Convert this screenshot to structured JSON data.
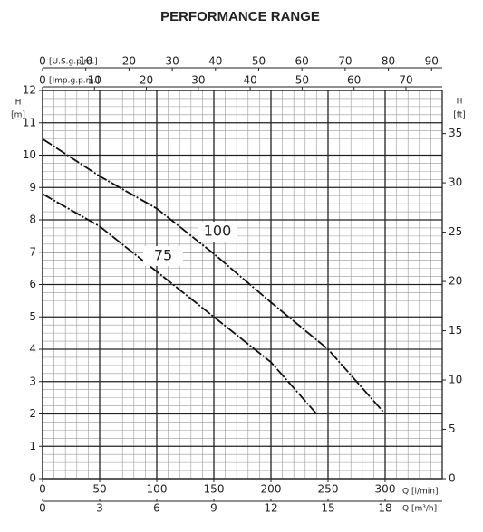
{
  "chart_data": {
    "type": "line",
    "title": "PERFORMANCE RANGE",
    "xlim": [
      0,
      350
    ],
    "xticks": [
      0,
      50,
      100,
      150,
      200,
      250,
      300
    ],
    "xlabel": "Q [l/min]",
    "extra_x_axes": [
      {
        "position": "bottom",
        "label": "Q [m³/h]",
        "lim": [
          0,
          21
        ],
        "ticks": [
          0,
          3,
          6,
          9,
          12,
          15,
          18
        ]
      },
      {
        "position": "top",
        "label": "[U.S.g.p.m.]",
        "lim": [
          0,
          92.46
        ],
        "ticks": [
          0,
          10,
          20,
          30,
          40,
          50,
          60,
          70,
          80,
          90
        ]
      },
      {
        "position": "top",
        "label": "[Imp.g.p.m.]",
        "lim": [
          0,
          76.99
        ],
        "ticks": [
          0,
          10,
          20,
          30,
          40,
          50,
          60,
          70
        ]
      }
    ],
    "ylabel": "H",
    "yunit": "[m]",
    "ylim": [
      0,
      12
    ],
    "yticks": [
      0,
      1,
      2,
      3,
      4,
      5,
      6,
      7,
      8,
      9,
      10,
      11,
      12
    ],
    "y2label": "H",
    "y2unit": "[ft]",
    "y2lim": [
      0,
      39.37
    ],
    "y2ticks": [
      0,
      5,
      10,
      15,
      20,
      25,
      30,
      35
    ],
    "grid": true,
    "series": [
      {
        "name": "100",
        "color": "#111111",
        "x": [
          0,
          50,
          100,
          150,
          200,
          250,
          300
        ],
        "values": [
          10.5,
          9.35,
          8.35,
          6.95,
          5.45,
          4.0,
          2.0
        ]
      },
      {
        "name": "75",
        "color": "#111111",
        "x": [
          0,
          50,
          100,
          150,
          200,
          240
        ],
        "values": [
          8.8,
          7.8,
          6.4,
          5.0,
          3.6,
          2.0
        ]
      }
    ]
  }
}
